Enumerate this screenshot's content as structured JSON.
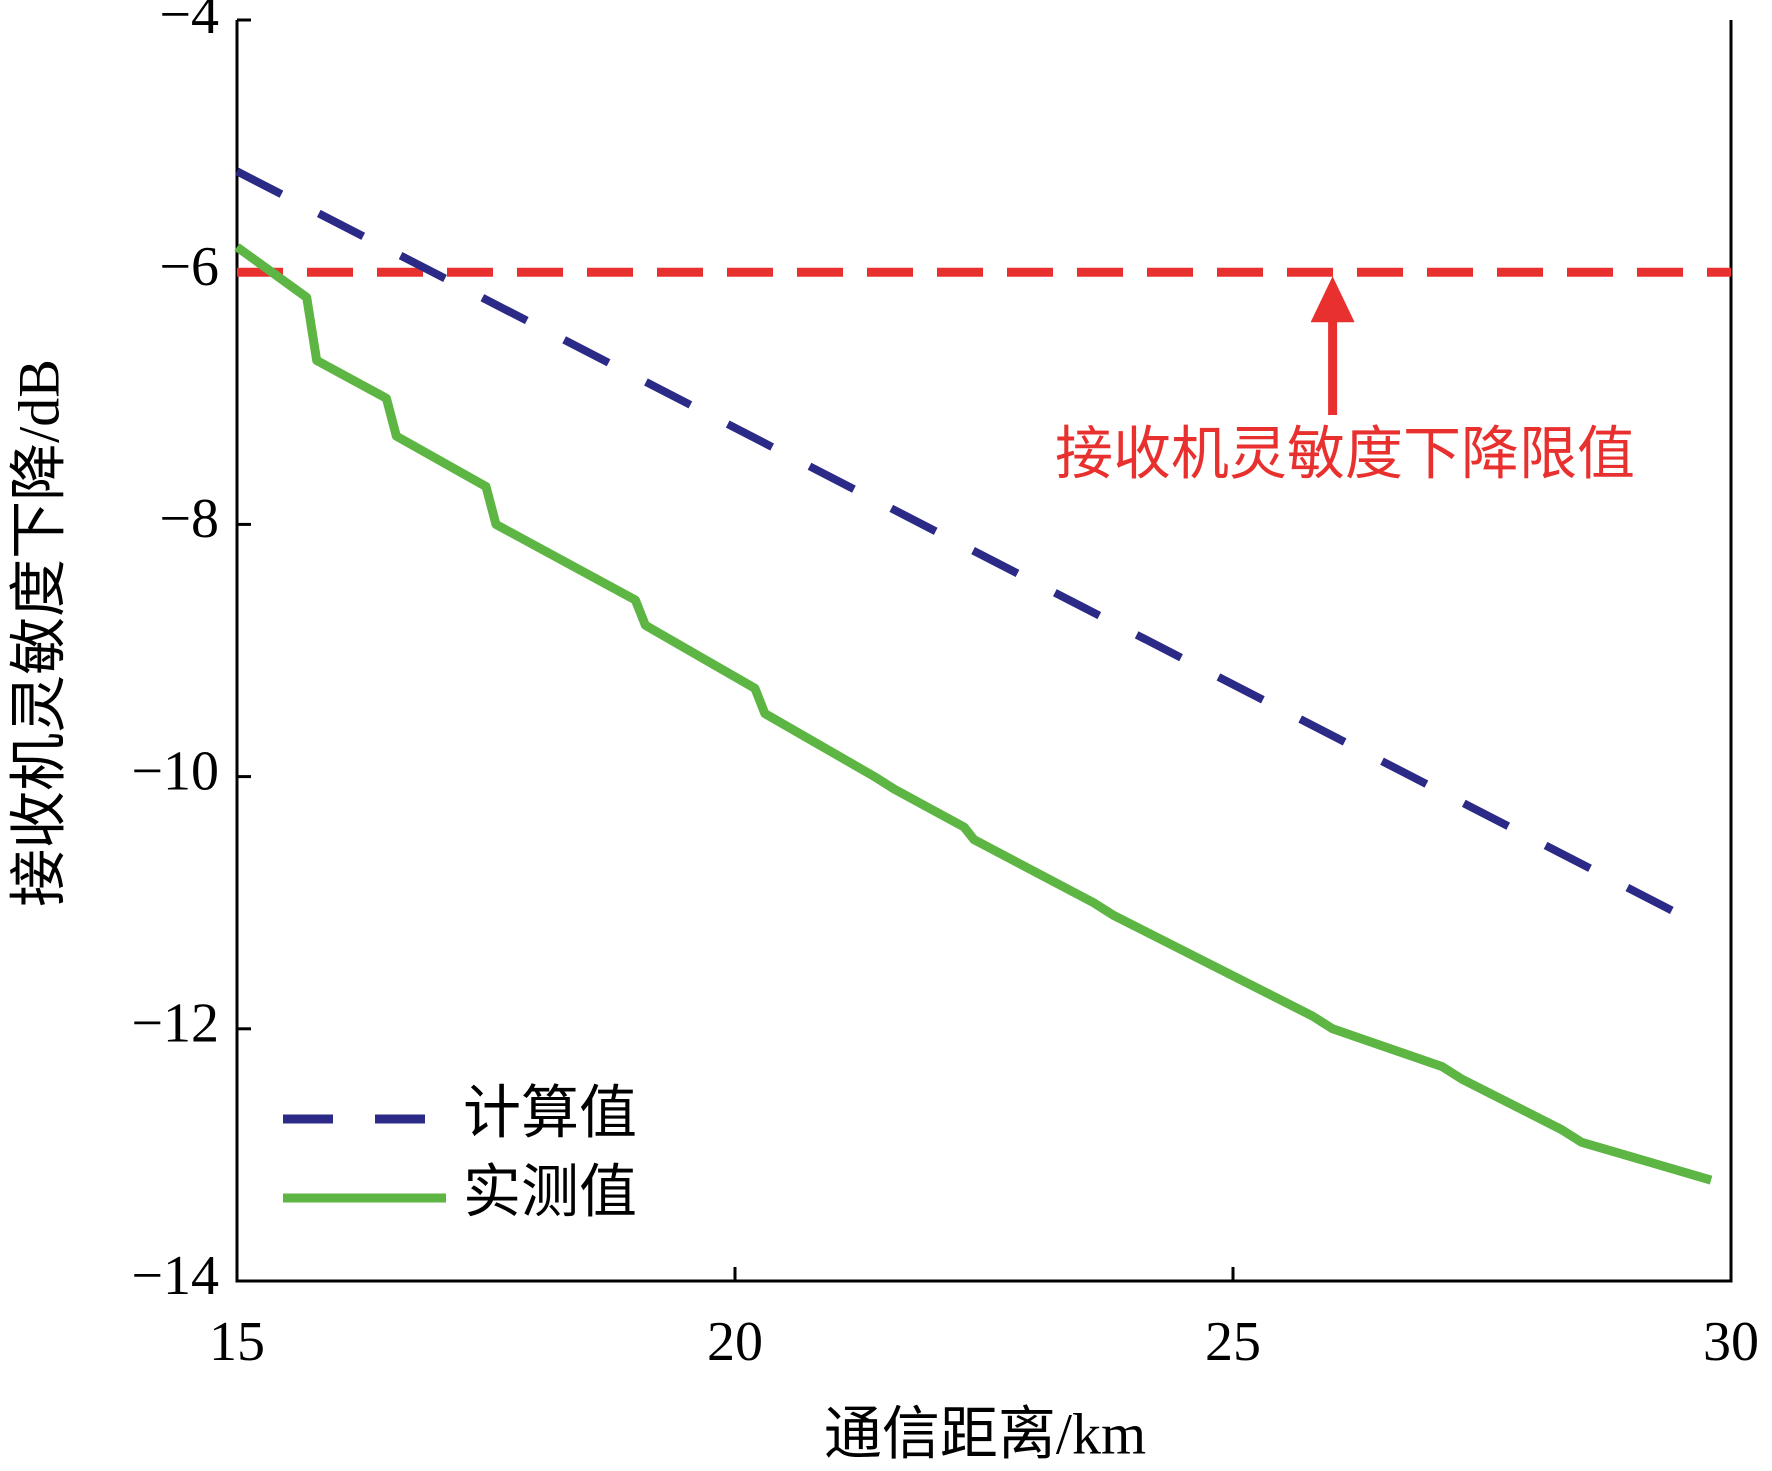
{
  "chart_data": {
    "type": "line",
    "xlabel": "通信距离/km",
    "ylabel": "接收机灵敏度下降/dB",
    "xlim": [
      15,
      30
    ],
    "ylim": [
      -14,
      -4
    ],
    "xticks": [
      15,
      20,
      25,
      30
    ],
    "yticks": [
      {
        "value": -14,
        "label": "−14"
      },
      {
        "value": -12,
        "label": "−12"
      },
      {
        "value": -10,
        "label": "−10"
      },
      {
        "value": -8,
        "label": "−8"
      },
      {
        "value": -6,
        "label": "−6"
      },
      {
        "value": -4,
        "label": "−4"
      }
    ],
    "legend": "lower left",
    "series": [
      {
        "name": "计算值",
        "color": "#2b2a86",
        "dash": true,
        "x": [
          15,
          29.5
        ],
        "values": [
          -5.2,
          -11.1
        ]
      },
      {
        "name": "实测值",
        "color": "#5db543",
        "dash": false,
        "x": [
          15,
          15.7,
          15.8,
          16.5,
          16.6,
          17.5,
          17.6,
          19.0,
          19.1,
          20.2,
          20.3,
          21.4,
          21.6,
          22.3,
          22.4,
          23.6,
          23.8,
          24.8,
          25.8,
          26.0,
          27.1,
          27.3,
          28.3,
          28.5,
          29.8
        ],
        "values": [
          -5.8,
          -6.2,
          -6.7,
          -7.0,
          -7.3,
          -7.7,
          -8.0,
          -8.6,
          -8.8,
          -9.3,
          -9.5,
          -10.0,
          -10.1,
          -10.4,
          -10.5,
          -11.0,
          -11.1,
          -11.5,
          -11.9,
          -12.0,
          -12.3,
          -12.4,
          -12.8,
          -12.9,
          -13.2
        ]
      }
    ],
    "threshold": {
      "value": -6,
      "color": "#e8312f"
    },
    "annotation": {
      "text": "接收机灵敏度下降限值",
      "x": 26
    }
  }
}
